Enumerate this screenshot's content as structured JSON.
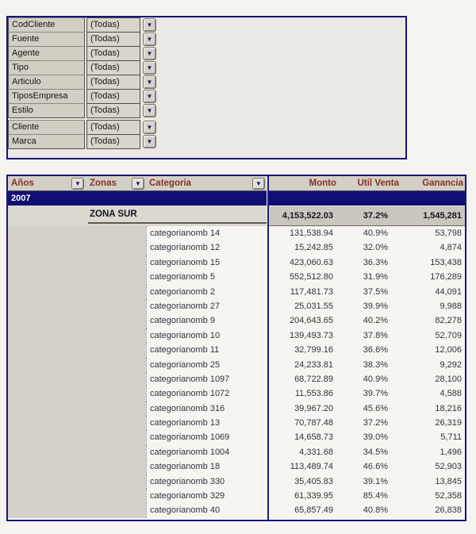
{
  "page_filters": {
    "all_value": "(Todas)",
    "fields": [
      {
        "label": "CodCliente",
        "value": "(Todas)"
      },
      {
        "label": "Fuente",
        "value": "(Todas)"
      },
      {
        "label": "Agente",
        "value": "(Todas)"
      },
      {
        "label": "Tipo",
        "value": "(Todas)"
      },
      {
        "label": "Articulo",
        "value": "(Todas)"
      },
      {
        "label": "TiposEmpresa",
        "value": "(Todas)"
      },
      {
        "label": "Estilo",
        "value": "(Todas)"
      },
      {
        "label": "Cliente",
        "value": "(Todas)"
      },
      {
        "label": "Marca",
        "value": "(Todas)"
      }
    ]
  },
  "pivot": {
    "headers": {
      "anos": "Años",
      "zonas": "Zonas",
      "categoria": "Categoria",
      "monto": "Monto",
      "util_venta": "Util Venta",
      "ganancia": "Ganancia"
    },
    "year": "2007",
    "subtotal": {
      "zona": "ZONA SUR",
      "monto": "4,153,522.03",
      "util_venta": "37.2%",
      "ganancia": "1,545,281"
    },
    "rows": [
      {
        "categoria": "categorianomb 14",
        "monto": "131,538.94",
        "util_venta": "40.9%",
        "ganancia": "53,798"
      },
      {
        "categoria": "categorianomb 12",
        "monto": "15,242.85",
        "util_venta": "32.0%",
        "ganancia": "4,874"
      },
      {
        "categoria": "categorianomb 15",
        "monto": "423,060.63",
        "util_venta": "36.3%",
        "ganancia": "153,438"
      },
      {
        "categoria": "categorianomb 5",
        "monto": "552,512.80",
        "util_venta": "31.9%",
        "ganancia": "176,289"
      },
      {
        "categoria": "categorianomb 2",
        "monto": "117,481.73",
        "util_venta": "37.5%",
        "ganancia": "44,091"
      },
      {
        "categoria": "categorianomb 27",
        "monto": "25,031.55",
        "util_venta": "39.9%",
        "ganancia": "9,988"
      },
      {
        "categoria": "categorianomb 9",
        "monto": "204,643.65",
        "util_venta": "40.2%",
        "ganancia": "82,278"
      },
      {
        "categoria": "categorianomb 10",
        "monto": "139,493.73",
        "util_venta": "37.8%",
        "ganancia": "52,709"
      },
      {
        "categoria": "categorianomb 11",
        "monto": "32,799.16",
        "util_venta": "36.6%",
        "ganancia": "12,006"
      },
      {
        "categoria": "categorianomb 25",
        "monto": "24,233.81",
        "util_venta": "38.3%",
        "ganancia": "9,292"
      },
      {
        "categoria": "categorianomb 1097",
        "monto": "68,722.89",
        "util_venta": "40.9%",
        "ganancia": "28,100"
      },
      {
        "categoria": "categorianomb 1072",
        "monto": "11,553.86",
        "util_venta": "39.7%",
        "ganancia": "4,588"
      },
      {
        "categoria": "categorianomb 316",
        "monto": "39,967.20",
        "util_venta": "45.6%",
        "ganancia": "18,216"
      },
      {
        "categoria": "categorianomb 13",
        "monto": "70,787.48",
        "util_venta": "37.2%",
        "ganancia": "26,319"
      },
      {
        "categoria": "categorianomb 1069",
        "monto": "14,658.73",
        "util_venta": "39.0%",
        "ganancia": "5,711"
      },
      {
        "categoria": "categorianomb 1004",
        "monto": "4,331.68",
        "util_venta": "34.5%",
        "ganancia": "1,496"
      },
      {
        "categoria": "categorianomb 18",
        "monto": "113,489.74",
        "util_venta": "46.6%",
        "ganancia": "52,903"
      },
      {
        "categoria": "categorianomb 330",
        "monto": "35,405.83",
        "util_venta": "39.1%",
        "ganancia": "13,845"
      },
      {
        "categoria": "categorianomb 329",
        "monto": "61,339.95",
        "util_venta": "85.4%",
        "ganancia": "52,358"
      },
      {
        "categoria": "categorianomb 40",
        "monto": "65,857.49",
        "util_venta": "40.8%",
        "ganancia": "26,838"
      }
    ]
  },
  "icons": {
    "dropdown_arrow": "▼"
  },
  "colors": {
    "accent_navy": "#15157a",
    "year_row_navy": "#0f0f73",
    "header_text_maroon": "#8a3022",
    "row_area_gray": "#d5d1c8",
    "filter_cell_gray": "#d2cec3"
  }
}
